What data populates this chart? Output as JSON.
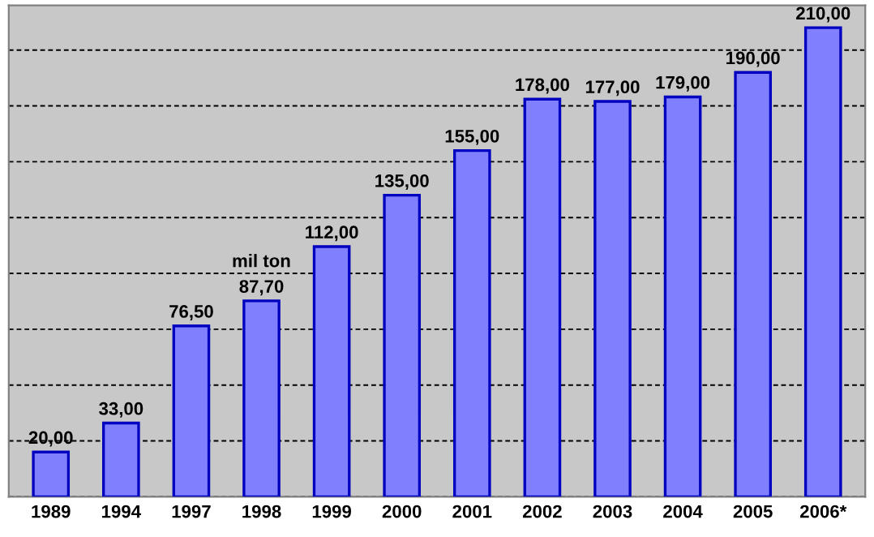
{
  "chart_data": {
    "type": "bar",
    "categories": [
      "1989",
      "1994",
      "1997",
      "1998",
      "1999",
      "2000",
      "2001",
      "2002",
      "2003",
      "2004",
      "2005",
      "2006*"
    ],
    "values": [
      20.0,
      33.0,
      76.5,
      87.7,
      112.0,
      135.0,
      155.0,
      178.0,
      177.0,
      179.0,
      190.0,
      210.0
    ],
    "value_labels": [
      "20,00",
      "33,00",
      "76,50",
      "87,70",
      "112,00",
      "135,00",
      "155,00",
      "178,00",
      "177,00",
      "179,00",
      "190,00",
      "210,00"
    ],
    "color": "#8080ff",
    "annotations": [
      "mil ton"
    ],
    "ylim": [
      0,
      220
    ],
    "yticks": [
      {
        "value": 0,
        "label": null
      },
      {
        "value": 25,
        "label": null
      },
      {
        "value": 50,
        "label": null
      },
      {
        "value": 75,
        "label": null
      },
      {
        "value": 100,
        "label": null
      },
      {
        "value": 125,
        "label": null
      },
      {
        "value": 150,
        "label": null
      },
      {
        "value": 175,
        "label": null
      },
      {
        "value": 200,
        "label": null
      }
    ],
    "grid": "y",
    "tick_labels": "x",
    "legend": false
  }
}
